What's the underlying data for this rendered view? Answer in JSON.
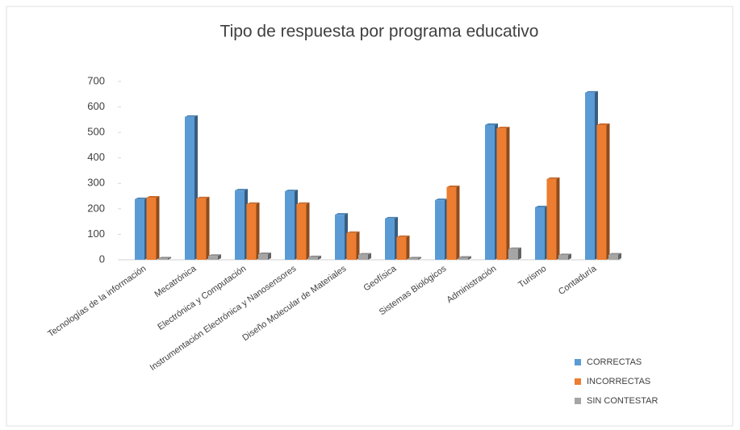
{
  "chart_data": {
    "type": "bar",
    "title": "Tipo de respuesta por programa educativo",
    "categories": [
      "Tecnologías de la información",
      "Mecatrónica",
      "Electrónica y Computación",
      "Instrumentación Electrónica y Nanosensores",
      "Diseño Molecular de Materiales",
      "Geofísica",
      "Sistemas Biológicos",
      "Administración",
      "Turismo",
      "Contaduría"
    ],
    "series": [
      {
        "name": "CORRECTAS",
        "color": "#5b9bd5",
        "values": [
          238,
          561,
          272,
          269,
          177,
          162,
          234,
          529,
          206,
          656
        ]
      },
      {
        "name": "INCORRECTAS",
        "color": "#ed7d31",
        "values": [
          244,
          241,
          219,
          219,
          105,
          89,
          285,
          516,
          317,
          529
        ]
      },
      {
        "name": "SIN CONTESTAR",
        "color": "#a5a5a5",
        "values": [
          5,
          15,
          22,
          10,
          20,
          5,
          8,
          42,
          18,
          20
        ]
      }
    ],
    "ylim": [
      0,
      700
    ],
    "yticks": [
      0,
      100,
      200,
      300,
      400,
      500,
      600,
      700
    ],
    "grid": false,
    "legend": "bottom-right"
  }
}
